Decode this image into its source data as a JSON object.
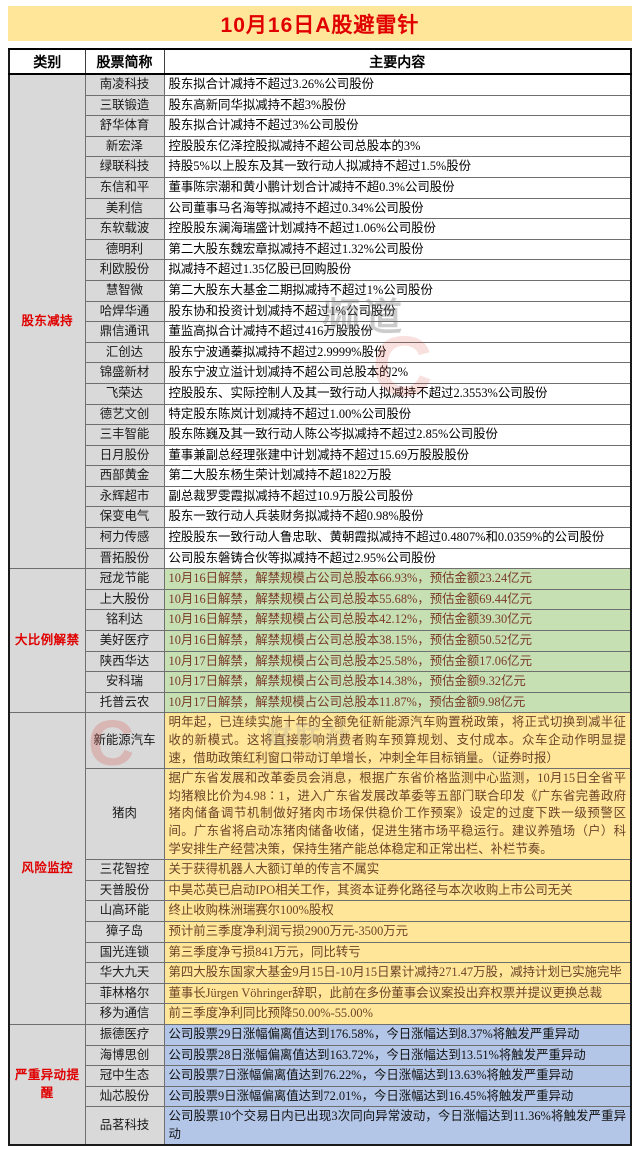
{
  "title": "10月16日A股避雷针",
  "colors": {
    "title_bg": "#ffe699",
    "title_text": "#e00000",
    "category_text": "#e00000",
    "name_col_bg": "#d9d9d9",
    "section_white_bg": "#ffffff",
    "section_green_bg": "#c6e0b4",
    "section_yellow_bg": "#ffe699",
    "section_blue_bg": "#b4c6e7"
  },
  "header": {
    "col_category": "类别",
    "col_stock": "股票简称",
    "col_content": "主要内容"
  },
  "watermark": {
    "channel_text": "频道",
    "brand_text": "财联社",
    "logo_letter": "C"
  },
  "sections": [
    {
      "id": "shareholder-reduction",
      "label": "股东减持",
      "content_bg": "#ffffff",
      "content_text": "#000000",
      "rows": [
        {
          "stock": "南凌科技",
          "content": "股东拟合计减持不超过3.26%公司股份"
        },
        {
          "stock": "三联锻造",
          "content": "股东高新同华拟减持不超3%股份"
        },
        {
          "stock": "舒华体育",
          "content": "股东拟合计减持不超过3%公司股份"
        },
        {
          "stock": "新宏泽",
          "content": "控股股东亿泽控股拟减持不超公司总股本的3%"
        },
        {
          "stock": "绿联科技",
          "content": "持股5%以上股东及其一致行动人拟减持不超过1.5%股份"
        },
        {
          "stock": "东信和平",
          "content": "董事陈宗潮和黄小鹏计划合计减持不超0.3%公司股份"
        },
        {
          "stock": "美利信",
          "content": "公司董事马名海等拟减持不超过0.34%公司股份"
        },
        {
          "stock": "东软载波",
          "content": "控股股东澜海瑞盛计划减持不超过1.06%公司股份"
        },
        {
          "stock": "德明利",
          "content": "第二大股东魏宏章拟减持不超过1.32%公司股份"
        },
        {
          "stock": "利欧股份",
          "content": "拟减持不超过1.35亿股已回购股份"
        },
        {
          "stock": "慧智微",
          "content": "第二大股东大基金二期拟减持不超过1%公司股份"
        },
        {
          "stock": "哈焊华通",
          "content": "股东协和投资计划减持不超过1%公司股份"
        },
        {
          "stock": "鼎信通讯",
          "content": "董监高拟合计减持不超过416万股股份"
        },
        {
          "stock": "汇创达",
          "content": "股东宁波通蓁拟减持不超过2.9999%股份"
        },
        {
          "stock": "锦盛新材",
          "content": "股东宁波立溢计划减持不超公司总股本的2%"
        },
        {
          "stock": "飞荣达",
          "content": "控股股东、实际控制人及其一致行动人拟减持不超过2.3553%公司股份"
        },
        {
          "stock": "德艺文创",
          "content": "特定股东陈岚计划减持不超过1.00%公司股份"
        },
        {
          "stock": "三丰智能",
          "content": "股东陈巍及其一致行动人陈公岑拟减持不超过2.85%公司股份"
        },
        {
          "stock": "日月股份",
          "content": "董事兼副总经理张建中计划减持不超过15.69万股股股份"
        },
        {
          "stock": "西部黄金",
          "content": "第二大股东杨生荣计划减持不超1822万股"
        },
        {
          "stock": "永辉超市",
          "content": "副总裁罗雯霞拟减持不超过10.9万股公司股份"
        },
        {
          "stock": "保变电气",
          "content": "股东一致行动人兵装财务拟减持不超0.98%股份"
        },
        {
          "stock": "柯力传感",
          "content": "控股股东一致行动人鲁忠耿、黄朝霞拟减持不超过0.4807%和0.0359%的公司股份"
        },
        {
          "stock": "晋拓股份",
          "content": "公司股东磐铸合伙等拟减持不超过2.95%公司股份"
        }
      ]
    },
    {
      "id": "large-unlock",
      "label": "大比例解禁",
      "content_bg": "#c6e0b4",
      "content_text": "#7a3a28",
      "rows": [
        {
          "stock": "冠龙节能",
          "content": "10月16日解禁，解禁规模占公司总股本66.93%，预估金额23.24亿元"
        },
        {
          "stock": "上大股份",
          "content": "10月16日解禁，解禁规模占公司总股本55.68%，预估金额69.44亿元"
        },
        {
          "stock": "铭利达",
          "content": "10月16日解禁，解禁规模占公司总股本42.12%，预估金额39.30亿元"
        },
        {
          "stock": "美好医疗",
          "content": "10月16日解禁，解禁规模占公司总股本38.15%，预估金额50.52亿元"
        },
        {
          "stock": "陕西华达",
          "content": "10月17日解禁，解禁规模占公司总股本25.58%，预估金额17.06亿元"
        },
        {
          "stock": "安科瑞",
          "content": "10月17日解禁，解禁规模占公司总股本14.38%，预估金额9.32亿元"
        },
        {
          "stock": "托普云农",
          "content": "10月17日解禁，解禁规模占公司总股本11.87%，预估金额9.98亿元"
        }
      ]
    },
    {
      "id": "risk-monitoring",
      "label": "风险监控",
      "content_bg": "#ffe699",
      "content_text": "#6e4428",
      "rows": [
        {
          "stock": "新能源汽车",
          "content": "明年起，已连续实施十年的全额免征新能源汽车购置税政策，将正式切换到减半征收的新模式。这将直接影响消费者购车预算规划、支付成本。众车企动作明显提速，借助政策红利窗口带动订单增长，冲刺全年目标销量。（证券时报）"
        },
        {
          "stock": "猪肉",
          "content": "据广东省发展和改革委员会消息，根据广东省价格监测中心监测，10月15日全省平均猪粮比价为4.98∶1，进入广东省发展改革委等五部门联合印发《广东省完善政府猪肉储备调节机制做好猪肉市场保供稳价工作预案》设定的过度下跌一级预警区间。广东省将启动冻猪肉储备收储，促进生猪市场平稳运行。建议养殖场（户）科学安排生产经营决策，保持生猪产能总体稳定和正常出栏、补栏节奏。"
        },
        {
          "stock": "三花智控",
          "content": "关于获得机器人大额订单的传言不属实"
        },
        {
          "stock": "天普股份",
          "content": "中昊芯英已启动IPO相关工作，其资本证券化路径与本次收购上市公司无关"
        },
        {
          "stock": "山高环能",
          "content": "终止收购株洲瑞赛尔100%股权"
        },
        {
          "stock": "獐子岛",
          "content": "预计前三季度净利润亏损2900万元-3500万元"
        },
        {
          "stock": "国光连锁",
          "content": "第三季度净亏损841万元，同比转亏"
        },
        {
          "stock": "华大九天",
          "content": "第四大股东国家大基金9月15日-10月15日累计减持271.47万股，减持计划已实施完毕"
        },
        {
          "stock": "菲林格尔",
          "content": "董事长Jürgen Vöhringer辞职，此前在多份董事会议案投出弃权票并提议更换总裁"
        },
        {
          "stock": "移为通信",
          "content": "前三季度净利同比预降50.00%-55.00%"
        }
      ]
    },
    {
      "id": "abnormal-move-alert",
      "label": "严重异动提醒",
      "content_bg": "#b4c6e7",
      "content_text": "#111111",
      "rows": [
        {
          "stock": "振德医疗",
          "content": "公司股票29日涨幅偏离值达到176.58%，今日涨幅达到8.37%将触发严重异动"
        },
        {
          "stock": "海博思创",
          "content": "公司股票28日涨幅偏离值达到163.72%，今日涨幅达到13.51%将触发严重异动"
        },
        {
          "stock": "冠中生态",
          "content": "公司股票7日涨幅偏离值达到76.22%，今日涨幅达到13.63%将触发严重异动"
        },
        {
          "stock": "灿芯股份",
          "content": "公司股票9日涨幅偏离值达到72.01%，今日涨幅达到16.45%将触发严重异动"
        },
        {
          "stock": "品茗科技",
          "content": "公司股票10个交易日内已出现3次同向异常波动，今日涨幅达到11.36%将触发严重异动"
        }
      ]
    }
  ]
}
